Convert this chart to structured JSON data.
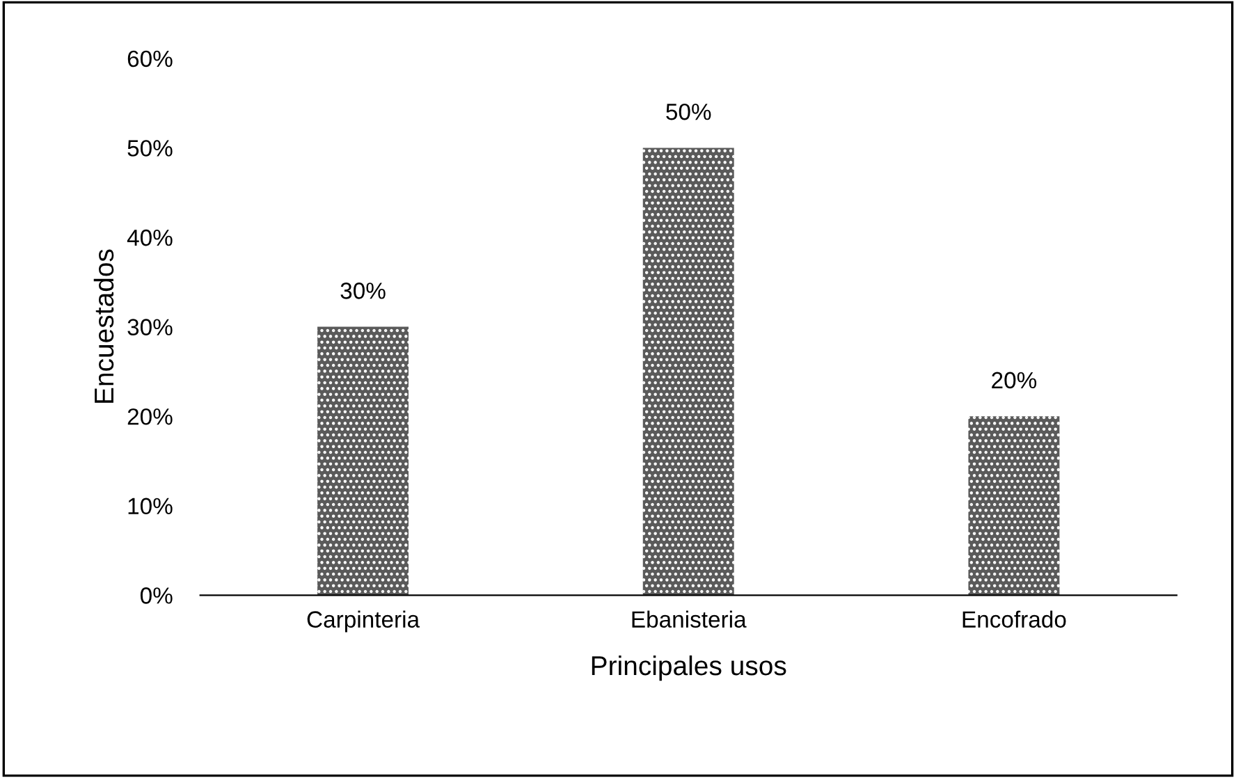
{
  "chart_data": {
    "type": "bar",
    "xlabel": "Principales usos",
    "ylabel": "Encuestados",
    "categories": [
      "Carpinteria",
      "Ebanisteria",
      "Encofrado"
    ],
    "values": [
      30,
      50,
      20
    ],
    "color": "#5a5a5a",
    "value_labels": [
      "30%",
      "50%",
      "20%"
    ],
    "ylim": [
      0,
      60
    ],
    "yticks": [
      {
        "value": 0,
        "label": "0%"
      },
      {
        "value": 10,
        "label": "10%"
      },
      {
        "value": 20,
        "label": "20%"
      },
      {
        "value": 30,
        "label": "30%"
      },
      {
        "value": 40,
        "label": "40%"
      },
      {
        "value": 50,
        "label": "50%"
      },
      {
        "value": 60,
        "label": "60%"
      }
    ],
    "grid": false,
    "legend": false
  }
}
